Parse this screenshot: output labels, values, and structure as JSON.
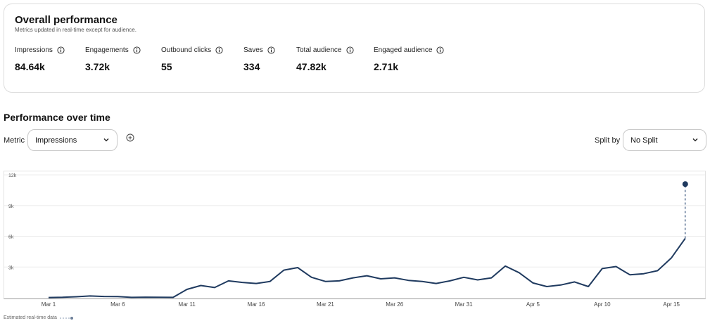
{
  "overview": {
    "title": "Overall performance",
    "subtitle": "Metrics updated in real-time except for audience.",
    "metrics": [
      {
        "label": "Impressions",
        "value": "84.64k"
      },
      {
        "label": "Engagements",
        "value": "3.72k"
      },
      {
        "label": "Outbound clicks",
        "value": "55"
      },
      {
        "label": "Saves",
        "value": "334"
      },
      {
        "label": "Total audience",
        "value": "47.82k"
      },
      {
        "label": "Engaged audience",
        "value": "2.71k"
      }
    ]
  },
  "performance": {
    "title": "Performance over time",
    "metric_label": "Metric",
    "metric_selected": "Impressions",
    "split_label": "Split by",
    "split_selected": "No Split"
  },
  "legend": {
    "text": "Estimated real-time data"
  },
  "colors": {
    "line": "#1f3a5f",
    "grid": "#eeeeee",
    "dashed": "#8a9bb3"
  },
  "chart_data": {
    "type": "line",
    "title": "",
    "xlabel": "",
    "ylabel": "",
    "ylim": [
      0,
      12000
    ],
    "yticks": [
      3000,
      6000,
      9000,
      12000
    ],
    "ytick_labels": [
      "3k",
      "6k",
      "9k",
      "12k"
    ],
    "x_start_day": 1,
    "xticks": [
      {
        "label": "Mar 1",
        "day": 1
      },
      {
        "label": "Mar 6",
        "day": 6
      },
      {
        "label": "Mar 11",
        "day": 11
      },
      {
        "label": "Mar 16",
        "day": 16
      },
      {
        "label": "Mar 21",
        "day": 21
      },
      {
        "label": "Mar 26",
        "day": 26
      },
      {
        "label": "Mar 31",
        "day": 31
      },
      {
        "label": "Apr 5",
        "day": 36
      },
      {
        "label": "Apr 10",
        "day": 41
      },
      {
        "label": "Apr 15",
        "day": 46
      }
    ],
    "series": [
      {
        "name": "Impressions",
        "values": [
          30,
          50,
          100,
          180,
          130,
          120,
          40,
          60,
          50,
          40,
          820,
          1200,
          1000,
          1650,
          1500,
          1400,
          1600,
          2700,
          2950,
          2000,
          1600,
          1650,
          1950,
          2150,
          1850,
          1950,
          1700,
          1600,
          1400,
          1650,
          2000,
          1750,
          1950,
          3100,
          2450,
          1450,
          1100,
          1250,
          1550,
          1100,
          2850,
          3050,
          2250,
          2350,
          2650,
          3900,
          5800
        ]
      },
      {
        "name": "Estimated real-time data",
        "start_day": 47,
        "values": [
          5800,
          11100
        ]
      }
    ]
  }
}
